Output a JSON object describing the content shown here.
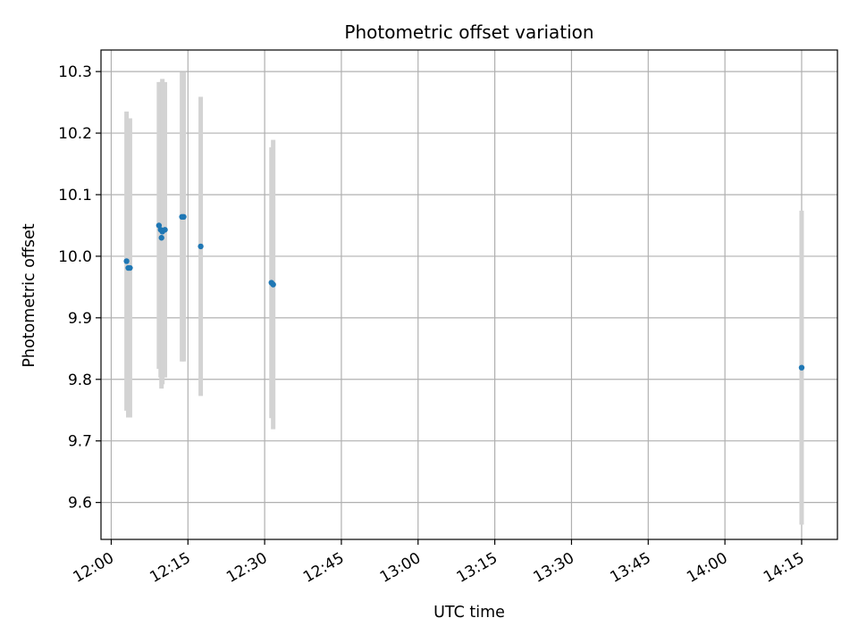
{
  "chart_data": {
    "type": "scatter",
    "title": "Photometric offset variation",
    "xlabel": "UTC time",
    "ylabel": "Photometric offset",
    "grid": true,
    "xlim": [
      "11:58",
      "14:22"
    ],
    "ylim": [
      9.54,
      10.335
    ],
    "x_ticks": [
      "12:00",
      "12:15",
      "12:30",
      "12:45",
      "13:00",
      "13:15",
      "13:30",
      "13:45",
      "14:00",
      "14:15"
    ],
    "y_ticks": [
      9.6,
      9.7,
      9.8,
      9.9,
      10.0,
      10.1,
      10.2,
      10.3
    ],
    "point_color": "#1f77b4",
    "errorbar_color": "#d3d3d3",
    "points": [
      {
        "x": "12:03:00",
        "y": 9.992,
        "err": 0.243
      },
      {
        "x": "12:03:20",
        "y": 9.981,
        "err": 0.243
      },
      {
        "x": "12:03:40",
        "y": 9.981,
        "err": 0.243
      },
      {
        "x": "12:09:20",
        "y": 10.05,
        "err": 0.233
      },
      {
        "x": "12:09:40",
        "y": 10.043,
        "err": 0.24
      },
      {
        "x": "12:09:50",
        "y": 10.03,
        "err": 0.245
      },
      {
        "x": "12:10:00",
        "y": 10.04,
        "err": 0.248
      },
      {
        "x": "12:10:30",
        "y": 10.043,
        "err": 0.24
      },
      {
        "x": "12:13:50",
        "y": 10.064,
        "err": 0.235
      },
      {
        "x": "12:14:10",
        "y": 10.064,
        "err": 0.235
      },
      {
        "x": "12:17:30",
        "y": 10.016,
        "err": 0.243
      },
      {
        "x": "12:31:20",
        "y": 9.957,
        "err": 0.22
      },
      {
        "x": "12:31:40",
        "y": 9.954,
        "err": 0.235
      },
      {
        "x": "14:15:00",
        "y": 9.819,
        "err": 0.255
      }
    ]
  }
}
